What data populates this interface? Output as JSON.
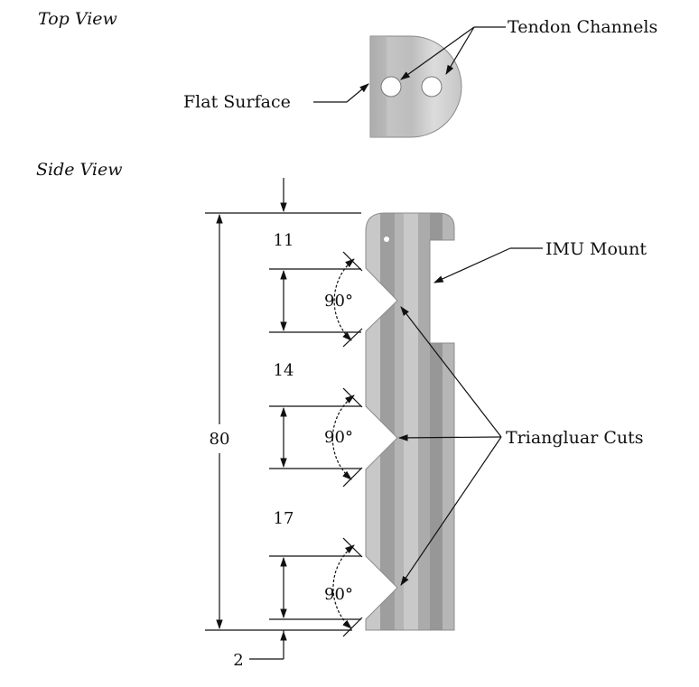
{
  "views": {
    "top": "Top View",
    "side": "Side View"
  },
  "callouts": {
    "tendon_channels": "Tendon Channels",
    "flat_surface": "Flat Surface",
    "imu_mount": "IMU Mount",
    "triangular_cuts": "Triangluar Cuts"
  },
  "dimensions": {
    "total_length": "80",
    "segment_1": "11",
    "segment_2": "14",
    "segment_3": "17",
    "bottom_offset": "2",
    "angle_1": "90°",
    "angle_2": "90°",
    "angle_3": "90°"
  },
  "colors": {
    "part_dark": "#9a9a9a",
    "part_mid": "#b9b9b9",
    "part_light": "#d6d6d6",
    "line": "#111111"
  }
}
